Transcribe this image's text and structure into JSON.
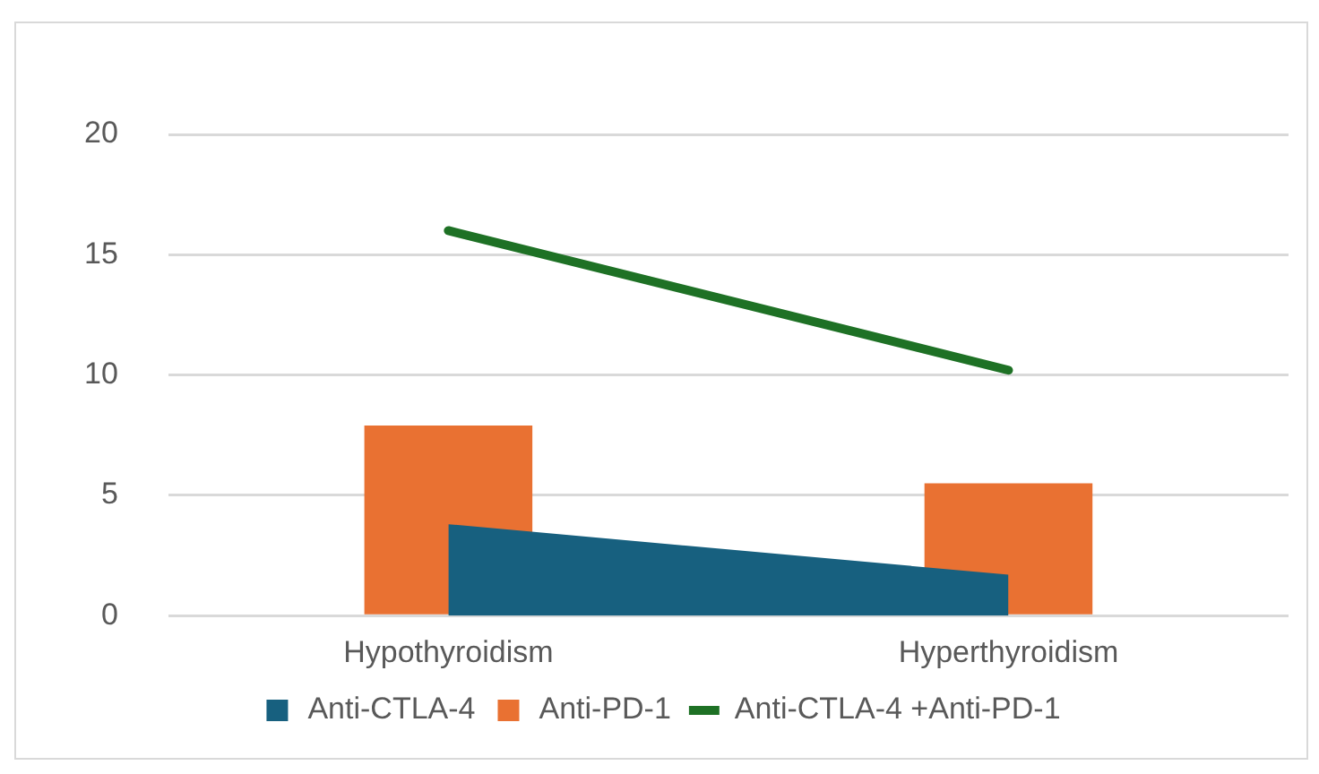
{
  "chart_data": {
    "type": "bar",
    "categories": [
      "Hypothyroidism",
      "Hyperthyroidism"
    ],
    "series": [
      {
        "name": "Anti-CTLA-4",
        "type": "area",
        "color": "#17607f",
        "values": [
          3.8,
          1.7
        ]
      },
      {
        "name": "Anti-PD-1",
        "color": "#e97132",
        "values": [
          7.9,
          5.5
        ]
      },
      {
        "name": "Anti-CTLA-4 +Anti-PD-1",
        "type": "line",
        "color": "#1e7125",
        "values": [
          16.0,
          10.2
        ]
      }
    ],
    "ylim": [
      0,
      20
    ],
    "yticks": [
      0,
      5,
      10,
      15,
      20
    ],
    "grid": "y",
    "legend": "bottom",
    "marker": "none"
  }
}
